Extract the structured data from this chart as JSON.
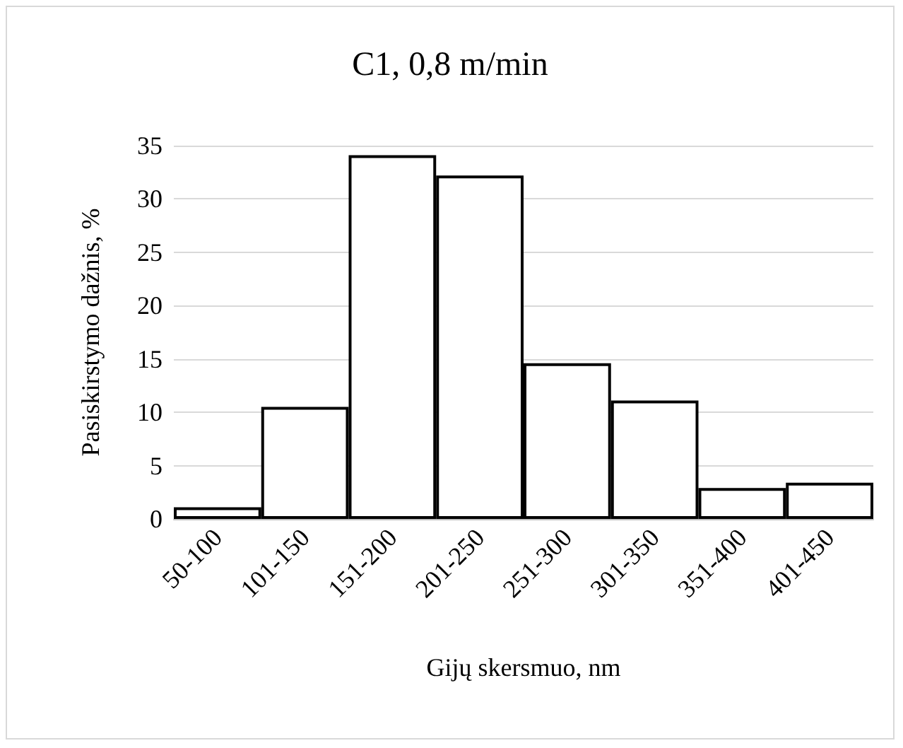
{
  "chart_data": {
    "type": "bar",
    "title": "C1, 0,8 m/min",
    "xlabel": "Gijų skersmuo, nm",
    "ylabel": "Pasiskirstymo dažnis, %",
    "categories": [
      "50-100",
      "101-150",
      "151-200",
      "201-250",
      "251-300",
      "301-350",
      "351-400",
      "401-450"
    ],
    "values": [
      1.1,
      10.5,
      34.1,
      32.2,
      14.6,
      11.1,
      2.9,
      3.4
    ],
    "color": "#ffffff",
    "ylim": [
      0,
      35
    ],
    "yticks": [
      0,
      5,
      10,
      15,
      20,
      25,
      30,
      35
    ],
    "grid": "y"
  }
}
